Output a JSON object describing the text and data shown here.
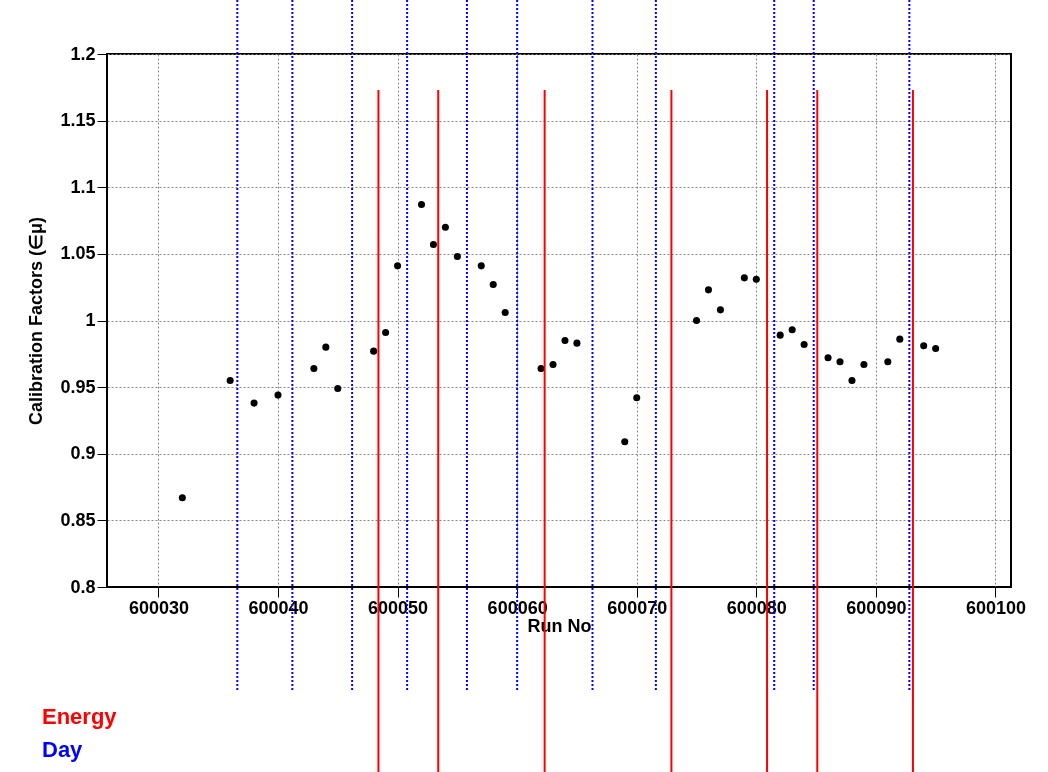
{
  "chart_data": {
    "type": "scatter",
    "xlabel": "Run No",
    "ylabel": "Calibration Factors (∈μ)",
    "x": [
      600032,
      600036,
      600038,
      600040,
      600043,
      600044,
      600045,
      600048,
      600049,
      600050,
      600052,
      600053,
      600054,
      600055,
      600057,
      600058,
      600059,
      600062,
      600063,
      600064,
      600065,
      600069,
      600070,
      600075,
      600076,
      600077,
      600079,
      600080,
      600082,
      600083,
      600084,
      600086,
      600087,
      600088,
      600089,
      600091,
      600092,
      600094,
      600095
    ],
    "series": [
      {
        "color": "#000000",
        "values": [
          0.867,
          0.955,
          0.938,
          0.944,
          0.964,
          0.98,
          0.949,
          0.977,
          0.991,
          1.041,
          1.087,
          1.057,
          1.07,
          1.048,
          1.041,
          1.027,
          1.006,
          0.964,
          0.967,
          0.985,
          0.983,
          0.909,
          0.942,
          1.0,
          1.023,
          1.008,
          1.032,
          1.031,
          0.989,
          0.993,
          0.982,
          0.972,
          0.969,
          0.955,
          0.967,
          0.969,
          0.986,
          0.981,
          0.979
        ]
      }
    ],
    "xlim": [
      600025.7,
      600101.3
    ],
    "xticks": [
      600030,
      600040,
      600050,
      600060,
      600070,
      600080,
      600090,
      600100
    ],
    "ylim": [
      0.8,
      1.2
    ],
    "yticks": [
      0.8,
      0.85,
      0.9,
      0.95,
      1,
      1.05,
      1.1,
      1.15,
      1.2
    ],
    "grid": true,
    "marker": "circle",
    "legend": "bottom left",
    "ref_lines": [
      {
        "axis": "x",
        "value": 600048.4,
        "label": "Energy",
        "color": "#ff0000",
        "line_style": "solid"
      },
      {
        "axis": "x",
        "value": 600053.4,
        "color": "#ff0000",
        "line_style": "solid"
      },
      {
        "axis": "x",
        "value": 600062.3,
        "color": "#ff0000",
        "line_style": "solid"
      },
      {
        "axis": "x",
        "value": 600072.9,
        "color": "#ff0000",
        "line_style": "solid"
      },
      {
        "axis": "x",
        "value": 600080.9,
        "color": "#ff0000",
        "line_style": "solid"
      },
      {
        "axis": "x",
        "value": 600085.1,
        "color": "#ff0000",
        "line_style": "solid"
      },
      {
        "axis": "x",
        "value": 600093.1,
        "color": "#ff0000",
        "line_style": "solid"
      },
      {
        "axis": "x",
        "value": 600036.6,
        "label": "Day",
        "color": "#0000ff",
        "line_style": "dotted"
      },
      {
        "axis": "x",
        "value": 600041.2,
        "color": "#0000ff",
        "line_style": "dotted"
      },
      {
        "axis": "x",
        "value": 600046.2,
        "color": "#0000ff",
        "line_style": "dotted"
      },
      {
        "axis": "x",
        "value": 600050.8,
        "color": "#0000ff",
        "line_style": "dotted"
      },
      {
        "axis": "x",
        "value": 600055.8,
        "color": "#0000ff",
        "line_style": "dotted"
      },
      {
        "axis": "x",
        "value": 600060.0,
        "color": "#0000ff",
        "line_style": "dotted"
      },
      {
        "axis": "x",
        "value": 600066.3,
        "color": "#0000ff",
        "line_style": "dotted"
      },
      {
        "axis": "x",
        "value": 600071.6,
        "color": "#0000ff",
        "line_style": "dotted"
      },
      {
        "axis": "x",
        "value": 600081.5,
        "color": "#0000ff",
        "line_style": "dotted"
      },
      {
        "axis": "x",
        "value": 600084.8,
        "color": "#0000ff",
        "line_style": "dotted"
      },
      {
        "axis": "x",
        "value": 600092.8,
        "color": "#0000ff",
        "line_style": "dotted"
      }
    ]
  }
}
